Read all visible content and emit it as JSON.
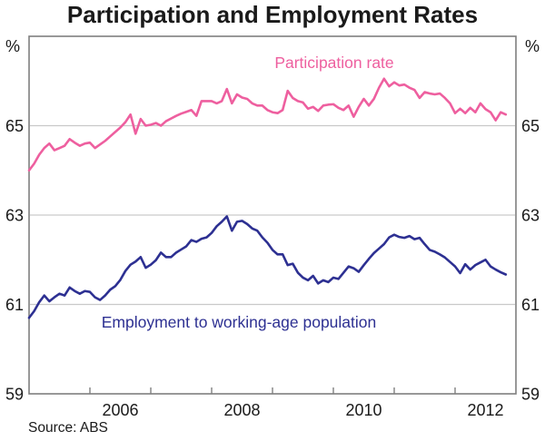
{
  "page": {
    "title": "Participation and Employment Rates",
    "source": "Source: ABS"
  },
  "chart_data": {
    "type": "line",
    "title": "Participation and Employment Rates",
    "unit_label": "%",
    "x_start_year": 2005,
    "x_end_year": 2013,
    "x_frequency": "monthly",
    "first_point": "2005-01",
    "last_point": "2012-11",
    "x_tick_years": [
      2006,
      2007,
      2008,
      2009,
      2010,
      2011,
      2012
    ],
    "x_axis_labels": [
      "2006",
      "2008",
      "2010",
      "2012"
    ],
    "ylim": [
      59,
      67
    ],
    "y_gridlines": [
      61,
      63,
      65
    ],
    "y_tick_labels": [
      "65",
      "63",
      "61",
      "59"
    ],
    "y_tick_values": [
      65,
      63,
      61,
      59
    ],
    "grid_on": true,
    "legend_position": "inline-annotations",
    "colors": {
      "participation": "#ee5f9f",
      "employment": "#2d3092",
      "gridline": "#c9c9c9",
      "frame": "#7f7f7f",
      "text": "#1a1a1a"
    },
    "series": [
      {
        "name": "Participation rate",
        "color": "#ee5f9f",
        "values": [
          64.0,
          64.15,
          64.35,
          64.5,
          64.6,
          64.45,
          64.5,
          64.55,
          64.7,
          64.62,
          64.55,
          64.6,
          64.62,
          64.5,
          64.58,
          64.66,
          64.76,
          64.86,
          64.96,
          65.08,
          65.25,
          64.82,
          65.15,
          65.0,
          65.02,
          65.06,
          65.0,
          65.1,
          65.16,
          65.22,
          65.27,
          65.31,
          65.35,
          65.22,
          65.55,
          65.55,
          65.55,
          65.5,
          65.55,
          65.82,
          65.5,
          65.7,
          65.63,
          65.6,
          65.5,
          65.45,
          65.45,
          65.35,
          65.3,
          65.28,
          65.35,
          65.78,
          65.62,
          65.55,
          65.52,
          65.38,
          65.42,
          65.33,
          65.45,
          65.47,
          65.48,
          65.4,
          65.35,
          65.45,
          65.2,
          65.42,
          65.6,
          65.45,
          65.6,
          65.85,
          66.05,
          65.88,
          65.97,
          65.9,
          65.92,
          65.85,
          65.8,
          65.62,
          65.75,
          65.72,
          65.7,
          65.72,
          65.62,
          65.5,
          65.28,
          65.38,
          65.28,
          65.4,
          65.3,
          65.5,
          65.37,
          65.3,
          65.12,
          65.3,
          65.25
        ]
      },
      {
        "name": "Employment to working-age population",
        "color": "#2d3092",
        "values": [
          60.7,
          60.85,
          61.05,
          61.2,
          61.07,
          61.16,
          61.24,
          61.2,
          61.38,
          61.3,
          61.24,
          61.3,
          61.28,
          61.16,
          61.1,
          61.2,
          61.33,
          61.41,
          61.55,
          61.75,
          61.89,
          61.96,
          62.06,
          61.82,
          61.89,
          61.99,
          62.16,
          62.06,
          62.06,
          62.16,
          62.23,
          62.3,
          62.44,
          62.4,
          62.47,
          62.5,
          62.6,
          62.75,
          62.85,
          62.97,
          62.65,
          62.85,
          62.87,
          62.8,
          62.7,
          62.65,
          62.5,
          62.38,
          62.22,
          62.12,
          62.12,
          61.88,
          61.91,
          61.71,
          61.6,
          61.54,
          61.64,
          61.47,
          61.54,
          61.5,
          61.6,
          61.57,
          61.71,
          61.85,
          61.81,
          61.73,
          61.88,
          62.02,
          62.15,
          62.25,
          62.35,
          62.5,
          62.56,
          62.51,
          62.49,
          62.53,
          62.46,
          62.49,
          62.35,
          62.22,
          62.18,
          62.12,
          62.05,
          61.95,
          61.85,
          61.7,
          61.9,
          61.78,
          61.88,
          61.94,
          62.0,
          61.85,
          61.78,
          61.72,
          61.67
        ]
      }
    ],
    "source": "Source: ABS"
  },
  "labels": {
    "participation": "Participation rate",
    "employment": "Employment to working-age population",
    "unit_left": "%",
    "unit_right": "%"
  }
}
